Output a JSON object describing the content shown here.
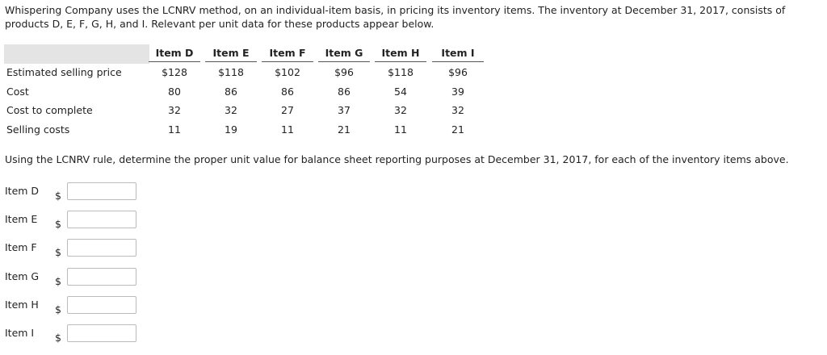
{
  "intro": "Whispering Company uses the LCNRV method, on an individual-item basis, in pricing its inventory items. The inventory at December 31, 2017, consists of products D, E, F, G, H, and I. Relevant per unit data for these products appear below.",
  "table": {
    "header": [
      "Item D",
      "Item E",
      "Item F",
      "Item G",
      "Item H",
      "Item I"
    ],
    "rows": [
      {
        "label": "Estimated selling price",
        "values": [
          "$128",
          "$118",
          "$102",
          "$96",
          "$118",
          "$96"
        ]
      },
      {
        "label": "Cost",
        "values": [
          80,
          86,
          86,
          86,
          54,
          39
        ]
      },
      {
        "label": "Cost to complete",
        "values": [
          32,
          32,
          27,
          37,
          32,
          32
        ]
      },
      {
        "label": "Selling costs",
        "values": [
          11,
          19,
          11,
          21,
          11,
          21
        ]
      }
    ]
  },
  "question": "Using the LCNRV rule, determine the proper unit value for balance sheet reporting purposes at December 31, 2017, for each of the inventory items above.",
  "answers": [
    {
      "label": "Item D",
      "currency": "$"
    },
    {
      "label": "Item E",
      "currency": "$"
    },
    {
      "label": "Item F",
      "currency": "$"
    },
    {
      "label": "Item G",
      "currency": "$"
    },
    {
      "label": "Item H",
      "currency": "$"
    },
    {
      "label": "Item I",
      "currency": "$"
    }
  ]
}
